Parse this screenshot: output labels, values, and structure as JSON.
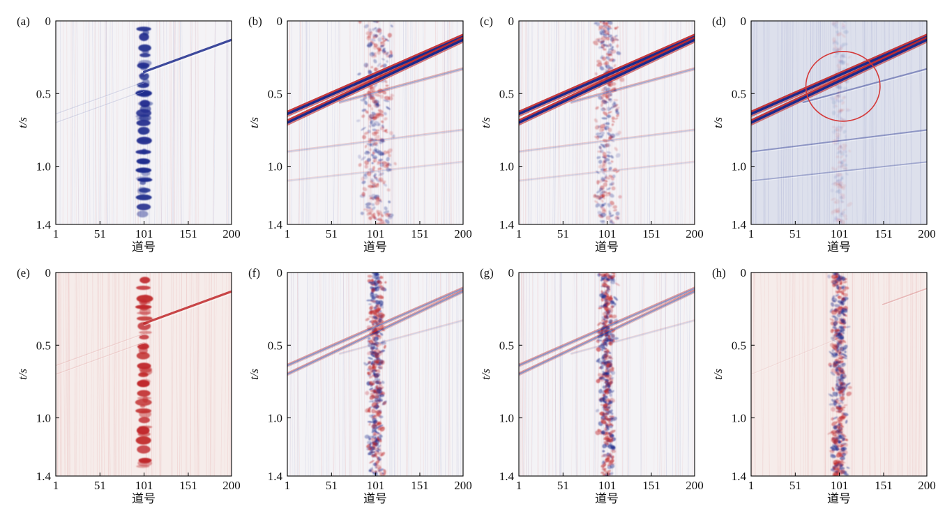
{
  "figure": {
    "colors": {
      "positive": "#c0282a",
      "negative": "#1c2a8c",
      "background": "#ffffff",
      "axis": "#000000"
    }
  },
  "chart_data": [
    {
      "id": "a",
      "panel_label": "(a)",
      "type": "heatmap",
      "xlabel": "道号",
      "ylabel": "t/s",
      "xticks": [
        "1",
        "51",
        "101",
        "151",
        "200"
      ],
      "yticks": [
        "0",
        "0.5",
        "1.0",
        "1.4"
      ],
      "xlim": [
        1,
        200
      ],
      "ylim": [
        0,
        1.4
      ],
      "y_inverted": true,
      "events": [
        {
          "polarity": "negative",
          "x": [
            101,
            200
          ],
          "t": [
            0.35,
            0.13
          ],
          "amplitude": 0.85
        },
        {
          "polarity": "negative",
          "x": [
            1,
            101
          ],
          "t": [
            0.64,
            0.42
          ],
          "amplitude": 0.12
        },
        {
          "polarity": "negative",
          "x": [
            1,
            101
          ],
          "t": [
            0.7,
            0.48
          ],
          "amplitude": 0.12
        }
      ],
      "noise_band": {
        "center_trace": 101,
        "halfwidth_traces": 8,
        "style": "blobs",
        "polarity": "negative"
      },
      "background_tint": "neutral"
    },
    {
      "id": "b",
      "panel_label": "(b)",
      "type": "heatmap",
      "xlabel": "道号",
      "ylabel": "t/s",
      "xticks": [
        "1",
        "51",
        "101",
        "151",
        "200"
      ],
      "yticks": [
        "0",
        "0.5",
        "1.0",
        "1.4"
      ],
      "xlim": [
        1,
        200
      ],
      "ylim": [
        0,
        1.4
      ],
      "y_inverted": true,
      "events": [
        {
          "polarity": "both",
          "x": [
            1,
            200
          ],
          "t": [
            0.64,
            0.11
          ],
          "amplitude": 1.0
        },
        {
          "polarity": "both",
          "x": [
            1,
            200
          ],
          "t": [
            0.7,
            0.13
          ],
          "amplitude": 1.0
        },
        {
          "polarity": "both",
          "x": [
            60,
            200
          ],
          "t": [
            0.56,
            0.33
          ],
          "amplitude": 0.35
        },
        {
          "polarity": "both",
          "x": [
            1,
            200
          ],
          "t": [
            0.9,
            0.75
          ],
          "amplitude": 0.2
        },
        {
          "polarity": "both",
          "x": [
            1,
            200
          ],
          "t": [
            1.1,
            0.97
          ],
          "amplitude": 0.15
        }
      ],
      "noise_band": {
        "center_trace": 101,
        "halfwidth_traces": 26,
        "style": "scatter",
        "polarity": "both"
      },
      "background_tint": "neutral"
    },
    {
      "id": "c",
      "panel_label": "(c)",
      "type": "heatmap",
      "xlabel": "道号",
      "ylabel": "t/s",
      "xticks": [
        "1",
        "51",
        "101",
        "151",
        "200"
      ],
      "yticks": [
        "0",
        "0.5",
        "1.0",
        "1.4"
      ],
      "xlim": [
        1,
        200
      ],
      "ylim": [
        0,
        1.4
      ],
      "y_inverted": true,
      "events": [
        {
          "polarity": "both",
          "x": [
            1,
            200
          ],
          "t": [
            0.64,
            0.11
          ],
          "amplitude": 1.0
        },
        {
          "polarity": "both",
          "x": [
            1,
            200
          ],
          "t": [
            0.7,
            0.13
          ],
          "amplitude": 1.0
        },
        {
          "polarity": "both",
          "x": [
            60,
            200
          ],
          "t": [
            0.56,
            0.33
          ],
          "amplitude": 0.35
        },
        {
          "polarity": "both",
          "x": [
            1,
            200
          ],
          "t": [
            0.9,
            0.75
          ],
          "amplitude": 0.2
        },
        {
          "polarity": "both",
          "x": [
            1,
            200
          ],
          "t": [
            1.1,
            0.97
          ],
          "amplitude": 0.15
        }
      ],
      "noise_band": {
        "center_trace": 101,
        "halfwidth_traces": 18,
        "style": "scatter",
        "polarity": "both"
      },
      "background_tint": "neutral"
    },
    {
      "id": "d",
      "panel_label": "(d)",
      "type": "heatmap",
      "xlabel": "道号",
      "ylabel": "t/s",
      "xticks": [
        "1",
        "51",
        "101",
        "151",
        "200"
      ],
      "yticks": [
        "0",
        "0.5",
        "1.0",
        "1.4"
      ],
      "xlim": [
        1,
        200
      ],
      "ylim": [
        0,
        1.4
      ],
      "y_inverted": true,
      "events": [
        {
          "polarity": "both",
          "x": [
            1,
            200
          ],
          "t": [
            0.64,
            0.11
          ],
          "amplitude": 1.0
        },
        {
          "polarity": "both",
          "x": [
            1,
            200
          ],
          "t": [
            0.7,
            0.13
          ],
          "amplitude": 1.0
        },
        {
          "polarity": "negative",
          "x": [
            60,
            200
          ],
          "t": [
            0.56,
            0.33
          ],
          "amplitude": 0.45
        },
        {
          "polarity": "negative",
          "x": [
            1,
            200
          ],
          "t": [
            0.9,
            0.75
          ],
          "amplitude": 0.4
        },
        {
          "polarity": "negative",
          "x": [
            1,
            200
          ],
          "t": [
            1.1,
            0.97
          ],
          "amplitude": 0.3
        }
      ],
      "noise_band": {
        "center_trace": 101,
        "halfwidth_traces": 14,
        "style": "faint",
        "polarity": "both"
      },
      "background_tint": "lavender",
      "annotation": {
        "shape": "ellipse",
        "center_trace": 105,
        "center_t": 0.45,
        "rx_traces": 42,
        "ry_t": 0.24,
        "color": "#d43a3a"
      }
    },
    {
      "id": "e",
      "panel_label": "(e)",
      "type": "heatmap",
      "xlabel": "道号",
      "ylabel": "t/s",
      "xticks": [
        "1",
        "51",
        "101",
        "151",
        "200"
      ],
      "yticks": [
        "0",
        "0.5",
        "1.0",
        "1.4"
      ],
      "xlim": [
        1,
        200
      ],
      "ylim": [
        0,
        1.4
      ],
      "y_inverted": true,
      "events": [
        {
          "polarity": "positive",
          "x": [
            101,
            200
          ],
          "t": [
            0.35,
            0.13
          ],
          "amplitude": 0.85
        },
        {
          "polarity": "positive",
          "x": [
            1,
            101
          ],
          "t": [
            0.64,
            0.42
          ],
          "amplitude": 0.12
        },
        {
          "polarity": "positive",
          "x": [
            1,
            101
          ],
          "t": [
            0.7,
            0.48
          ],
          "amplitude": 0.12
        }
      ],
      "noise_band": {
        "center_trace": 101,
        "halfwidth_traces": 8,
        "style": "blobs",
        "polarity": "positive"
      },
      "background_tint": "pink"
    },
    {
      "id": "f",
      "panel_label": "(f)",
      "type": "heatmap",
      "xlabel": "道号",
      "ylabel": "t/s",
      "xticks": [
        "1",
        "51",
        "101",
        "151",
        "200"
      ],
      "yticks": [
        "0",
        "0.5",
        "1.0",
        "1.4"
      ],
      "xlim": [
        1,
        200
      ],
      "ylim": [
        0,
        1.4
      ],
      "y_inverted": true,
      "events": [
        {
          "polarity": "both",
          "x": [
            1,
            200
          ],
          "t": [
            0.64,
            0.11
          ],
          "amplitude": 0.45
        },
        {
          "polarity": "both",
          "x": [
            1,
            200
          ],
          "t": [
            0.7,
            0.13
          ],
          "amplitude": 0.45
        },
        {
          "polarity": "both",
          "x": [
            60,
            200
          ],
          "t": [
            0.56,
            0.33
          ],
          "amplitude": 0.15
        }
      ],
      "noise_band": {
        "center_trace": 101,
        "halfwidth_traces": 13,
        "style": "dense",
        "polarity": "both"
      },
      "background_tint": "neutral"
    },
    {
      "id": "g",
      "panel_label": "(g)",
      "type": "heatmap",
      "xlabel": "道号",
      "ylabel": "t/s",
      "xticks": [
        "1",
        "51",
        "101",
        "151",
        "200"
      ],
      "yticks": [
        "0",
        "0.5",
        "1.0",
        "1.4"
      ],
      "xlim": [
        1,
        200
      ],
      "ylim": [
        0,
        1.4
      ],
      "y_inverted": true,
      "events": [
        {
          "polarity": "both",
          "x": [
            1,
            200
          ],
          "t": [
            0.64,
            0.11
          ],
          "amplitude": 0.45
        },
        {
          "polarity": "both",
          "x": [
            1,
            200
          ],
          "t": [
            0.7,
            0.13
          ],
          "amplitude": 0.45
        },
        {
          "polarity": "both",
          "x": [
            60,
            200
          ],
          "t": [
            0.56,
            0.33
          ],
          "amplitude": 0.15
        }
      ],
      "noise_band": {
        "center_trace": 101,
        "halfwidth_traces": 13,
        "style": "dense",
        "polarity": "both"
      },
      "background_tint": "neutral"
    },
    {
      "id": "h",
      "panel_label": "(h)",
      "type": "heatmap",
      "xlabel": "道号",
      "ylabel": "t/s",
      "xticks": [
        "1",
        "51",
        "101",
        "151",
        "200"
      ],
      "yticks": [
        "0",
        "0.5",
        "1.0",
        "1.4"
      ],
      "xlim": [
        1,
        200
      ],
      "ylim": [
        0,
        1.4
      ],
      "y_inverted": true,
      "events": [
        {
          "polarity": "positive",
          "x": [
            150,
            200
          ],
          "t": [
            0.22,
            0.11
          ],
          "amplitude": 0.25
        },
        {
          "polarity": "positive",
          "x": [
            1,
            101
          ],
          "t": [
            0.7,
            0.45
          ],
          "amplitude": 0.08
        }
      ],
      "noise_band": {
        "center_trace": 101,
        "halfwidth_traces": 13,
        "style": "dense",
        "polarity": "both"
      },
      "background_tint": "pink"
    }
  ]
}
